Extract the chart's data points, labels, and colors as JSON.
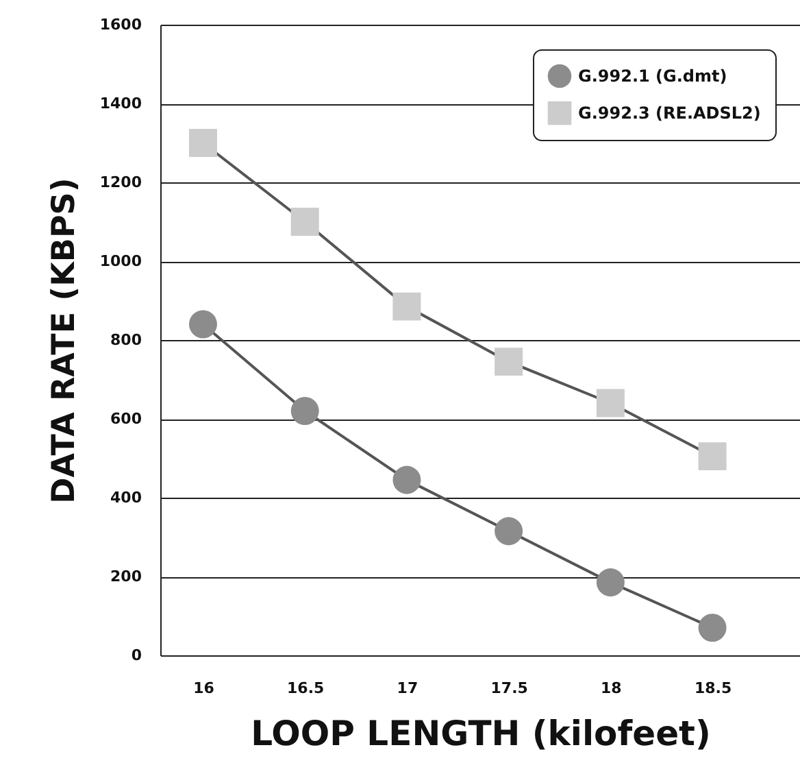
{
  "chart_data": {
    "type": "line",
    "xlabel": "LOOP LENGTH (kilofeet)",
    "ylabel": "DATA RATE (KBPS)",
    "x": [
      16,
      16.5,
      17,
      17.5,
      18,
      18.5
    ],
    "xlim": [
      15.79,
      18.93
    ],
    "xticks": [
      16,
      16.5,
      17,
      17.5,
      18,
      18.5
    ],
    "ylim": [
      0,
      1600
    ],
    "yticks": [
      0,
      200,
      400,
      600,
      800,
      1000,
      1200,
      1400,
      1600
    ],
    "grid": "y",
    "legend": "top right",
    "series": [
      {
        "name": "G.992.1 (G.dmt)",
        "color": "#8c8c8c",
        "marker": "circle",
        "values": [
          840,
          620,
          445,
          315,
          185,
          70
        ]
      },
      {
        "name": "G.992.3 (RE.ADSL2)",
        "color": "#cccccc",
        "marker": "square",
        "values": [
          1300,
          1100,
          885,
          745,
          640,
          505
        ]
      }
    ]
  }
}
